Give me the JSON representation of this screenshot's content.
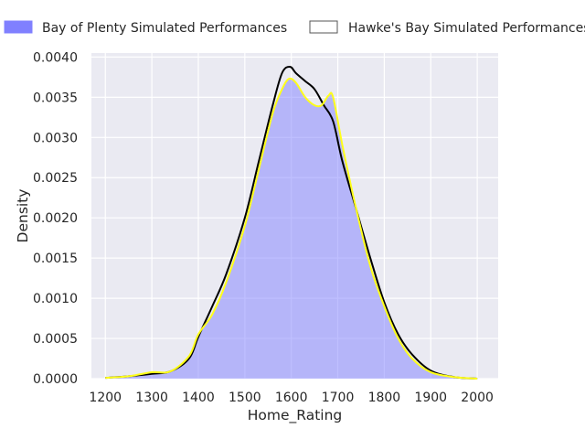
{
  "chart_data": {
    "type": "area",
    "xlabel": "Home_Rating",
    "ylabel": "Density",
    "xlim": [
      1170,
      2045
    ],
    "ylim": [
      0,
      0.00405
    ],
    "x_ticks": [
      1200,
      1300,
      1400,
      1500,
      1600,
      1700,
      1800,
      1900,
      2000
    ],
    "x_tick_labels": [
      "1200",
      "1300",
      "1400",
      "1500",
      "1600",
      "1700",
      "1800",
      "1900",
      "2000"
    ],
    "y_ticks": [
      0,
      0.0005,
      0.001,
      0.0015,
      0.002,
      0.0025,
      0.003,
      0.0035,
      0.004
    ],
    "y_tick_labels": [
      "0.0000",
      "0.0005",
      "0.0010",
      "0.0015",
      "0.0020",
      "0.0025",
      "0.0030",
      "0.0035",
      "0.0040"
    ],
    "grid": true,
    "legend_position": "top",
    "series": [
      {
        "name": "Bay of Plenty Simulated Performances",
        "style": "filled",
        "fill_color": "#8080ff",
        "edge_color": "#ffff1a",
        "x": [
          1200,
          1250,
          1300,
          1340,
          1380,
          1400,
          1430,
          1460,
          1500,
          1530,
          1560,
          1580,
          1595,
          1610,
          1630,
          1650,
          1665,
          1680,
          1690,
          1710,
          1740,
          1770,
          1800,
          1830,
          1860,
          1900,
          1950,
          2000
        ],
        "y": [
          1e-05,
          3e-05,
          8e-05,
          9e-05,
          0.00028,
          0.00055,
          0.0008,
          0.0012,
          0.0019,
          0.0026,
          0.0033,
          0.0036,
          0.00373,
          0.00368,
          0.0035,
          0.0034,
          0.0034,
          0.00352,
          0.0035,
          0.0029,
          0.0021,
          0.0014,
          0.0009,
          0.0005,
          0.00025,
          8e-05,
          2e-05,
          0.0
        ]
      },
      {
        "name": "Hawke's Bay Simulated Performances",
        "style": "line",
        "line_color": "#000000",
        "x": [
          1200,
          1250,
          1300,
          1340,
          1380,
          1400,
          1430,
          1460,
          1500,
          1530,
          1560,
          1580,
          1597,
          1610,
          1630,
          1650,
          1670,
          1690,
          1710,
          1740,
          1770,
          1800,
          1830,
          1860,
          1900,
          1950,
          2000
        ],
        "y": [
          1e-05,
          3e-05,
          6e-05,
          9e-05,
          0.00025,
          0.00052,
          0.0009,
          0.0013,
          0.002,
          0.0027,
          0.0034,
          0.0038,
          0.00388,
          0.0038,
          0.0037,
          0.0036,
          0.0034,
          0.0032,
          0.0027,
          0.0021,
          0.0015,
          0.00095,
          0.00055,
          0.0003,
          0.0001,
          2e-05,
          0.0
        ]
      }
    ]
  }
}
